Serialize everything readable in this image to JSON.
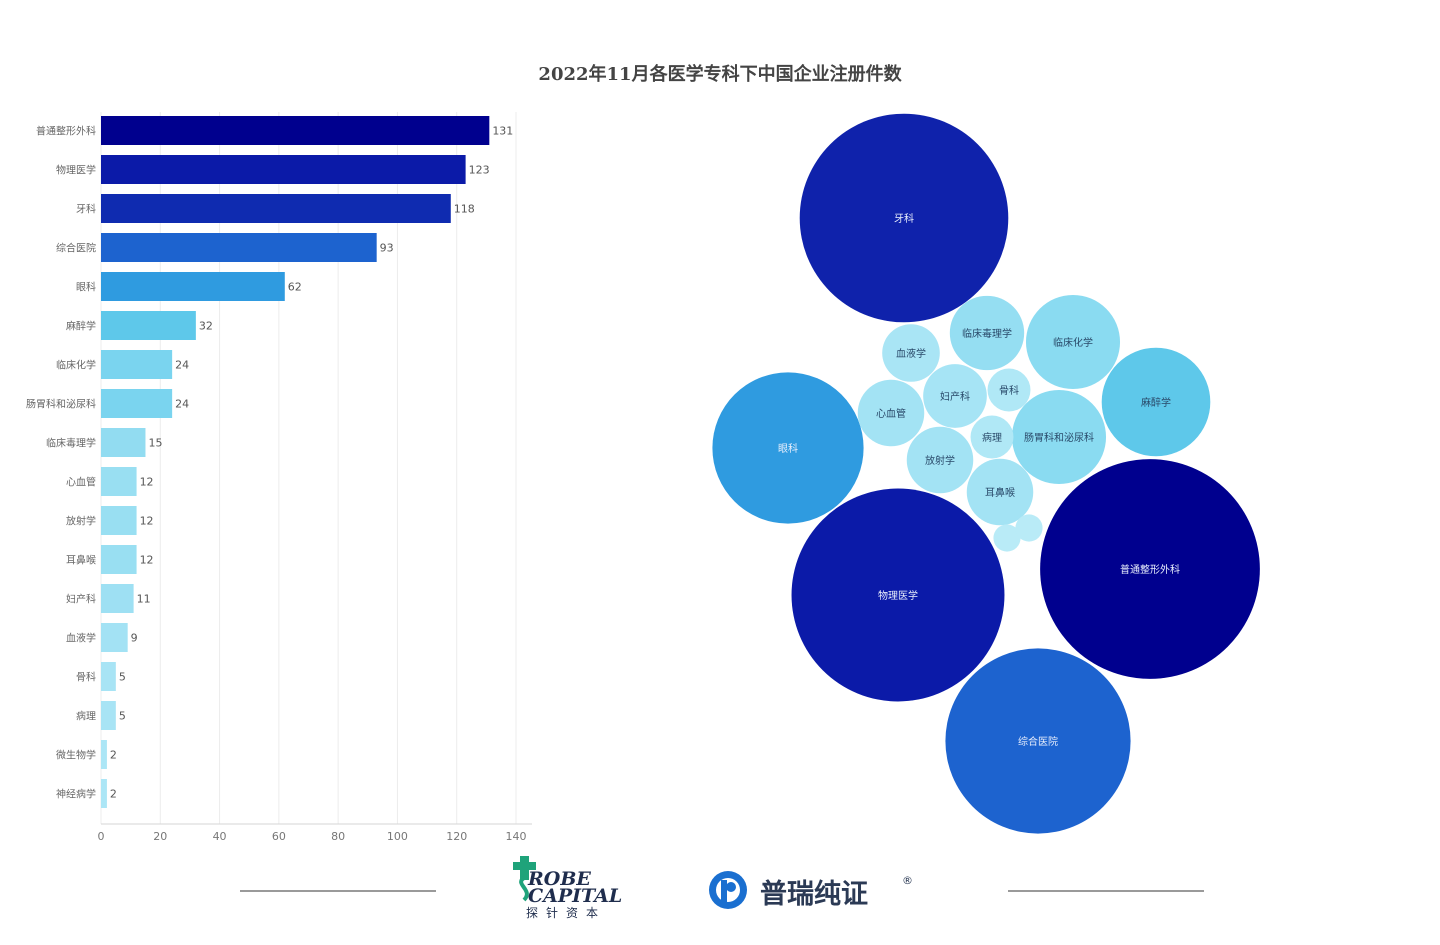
{
  "chart_data": [
    {
      "type": "bar",
      "orientation": "horizontal",
      "title": "2022年11月各医学专科下中国企业注册件数",
      "categories": [
        "普通整形外科",
        "物理医学",
        "牙科",
        "综合医院",
        "眼科",
        "麻醉学",
        "临床化学",
        "肠胃科和泌尿科",
        "临床毒理学",
        "心血管",
        "放射学",
        "耳鼻喉",
        "妇产科",
        "血液学",
        "骨科",
        "病理",
        "微生物学",
        "神经病学"
      ],
      "values": [
        131,
        123,
        118,
        93,
        62,
        32,
        24,
        24,
        15,
        12,
        12,
        12,
        11,
        9,
        5,
        5,
        2,
        2
      ],
      "xlim": [
        0,
        140
      ],
      "xticks": [
        0,
        20,
        40,
        60,
        80,
        100,
        120,
        140
      ],
      "grid": true,
      "bar_colors": [
        "#00008e",
        "#0b1aa8",
        "#0f2bb0",
        "#1d63cf",
        "#2f9be0",
        "#5ec8ea",
        "#7ad4ef",
        "#7ad4ef",
        "#92dcf1",
        "#99dff2",
        "#99dff2",
        "#99dff2",
        "#9ee0f3",
        "#a3e2f4",
        "#a8e4f5",
        "#a8e4f5",
        "#ace6f6",
        "#ace6f6"
      ]
    },
    {
      "type": "bubble",
      "bubbles": [
        {
          "label": "牙科",
          "value": 118,
          "color": "#0f22ab"
        },
        {
          "label": "普通整形外科",
          "value": 131,
          "color": "#00008e"
        },
        {
          "label": "物理医学",
          "value": 123,
          "color": "#0b1aa8"
        },
        {
          "label": "综合医院",
          "value": 93,
          "color": "#1d63cf"
        },
        {
          "label": "眼科",
          "value": 62,
          "color": "#2f9be0"
        },
        {
          "label": "麻醉学",
          "value": 32,
          "color": "#5ec8ea"
        },
        {
          "label": "临床化学",
          "value": 24,
          "color": "#8adbf1"
        },
        {
          "label": "肠胃科和泌尿科",
          "value": 24,
          "color": "#8adbf1"
        },
        {
          "label": "临床毒理学",
          "value": 15,
          "color": "#95def2"
        },
        {
          "label": "心血管",
          "value": 12,
          "color": "#a3e3f4"
        },
        {
          "label": "放射学",
          "value": 12,
          "color": "#a3e3f4"
        },
        {
          "label": "耳鼻喉",
          "value": 12,
          "color": "#a3e3f4"
        },
        {
          "label": "妇产科",
          "value": 11,
          "color": "#a6e4f5"
        },
        {
          "label": "血液学",
          "value": 9,
          "color": "#a9e5f5"
        },
        {
          "label": "骨科",
          "value": 5,
          "color": "#b0e8f6"
        },
        {
          "label": "病理",
          "value": 5,
          "color": "#b0e8f6"
        },
        {
          "label": "",
          "value": 2,
          "color": "#b9ebf7"
        },
        {
          "label": "",
          "value": 2,
          "color": "#b9ebf7"
        }
      ]
    }
  ],
  "logos": {
    "probe_line1": "ROBE",
    "probe_line2": "CAPITAL",
    "probe_cn": "探针资本",
    "prc_name": "普瑞纯证",
    "prc_reg": "®"
  },
  "colors": {
    "probe_green": "#1fa37a",
    "probe_navy": "#1f2d4d",
    "prc_blue": "#1a6fd0"
  }
}
